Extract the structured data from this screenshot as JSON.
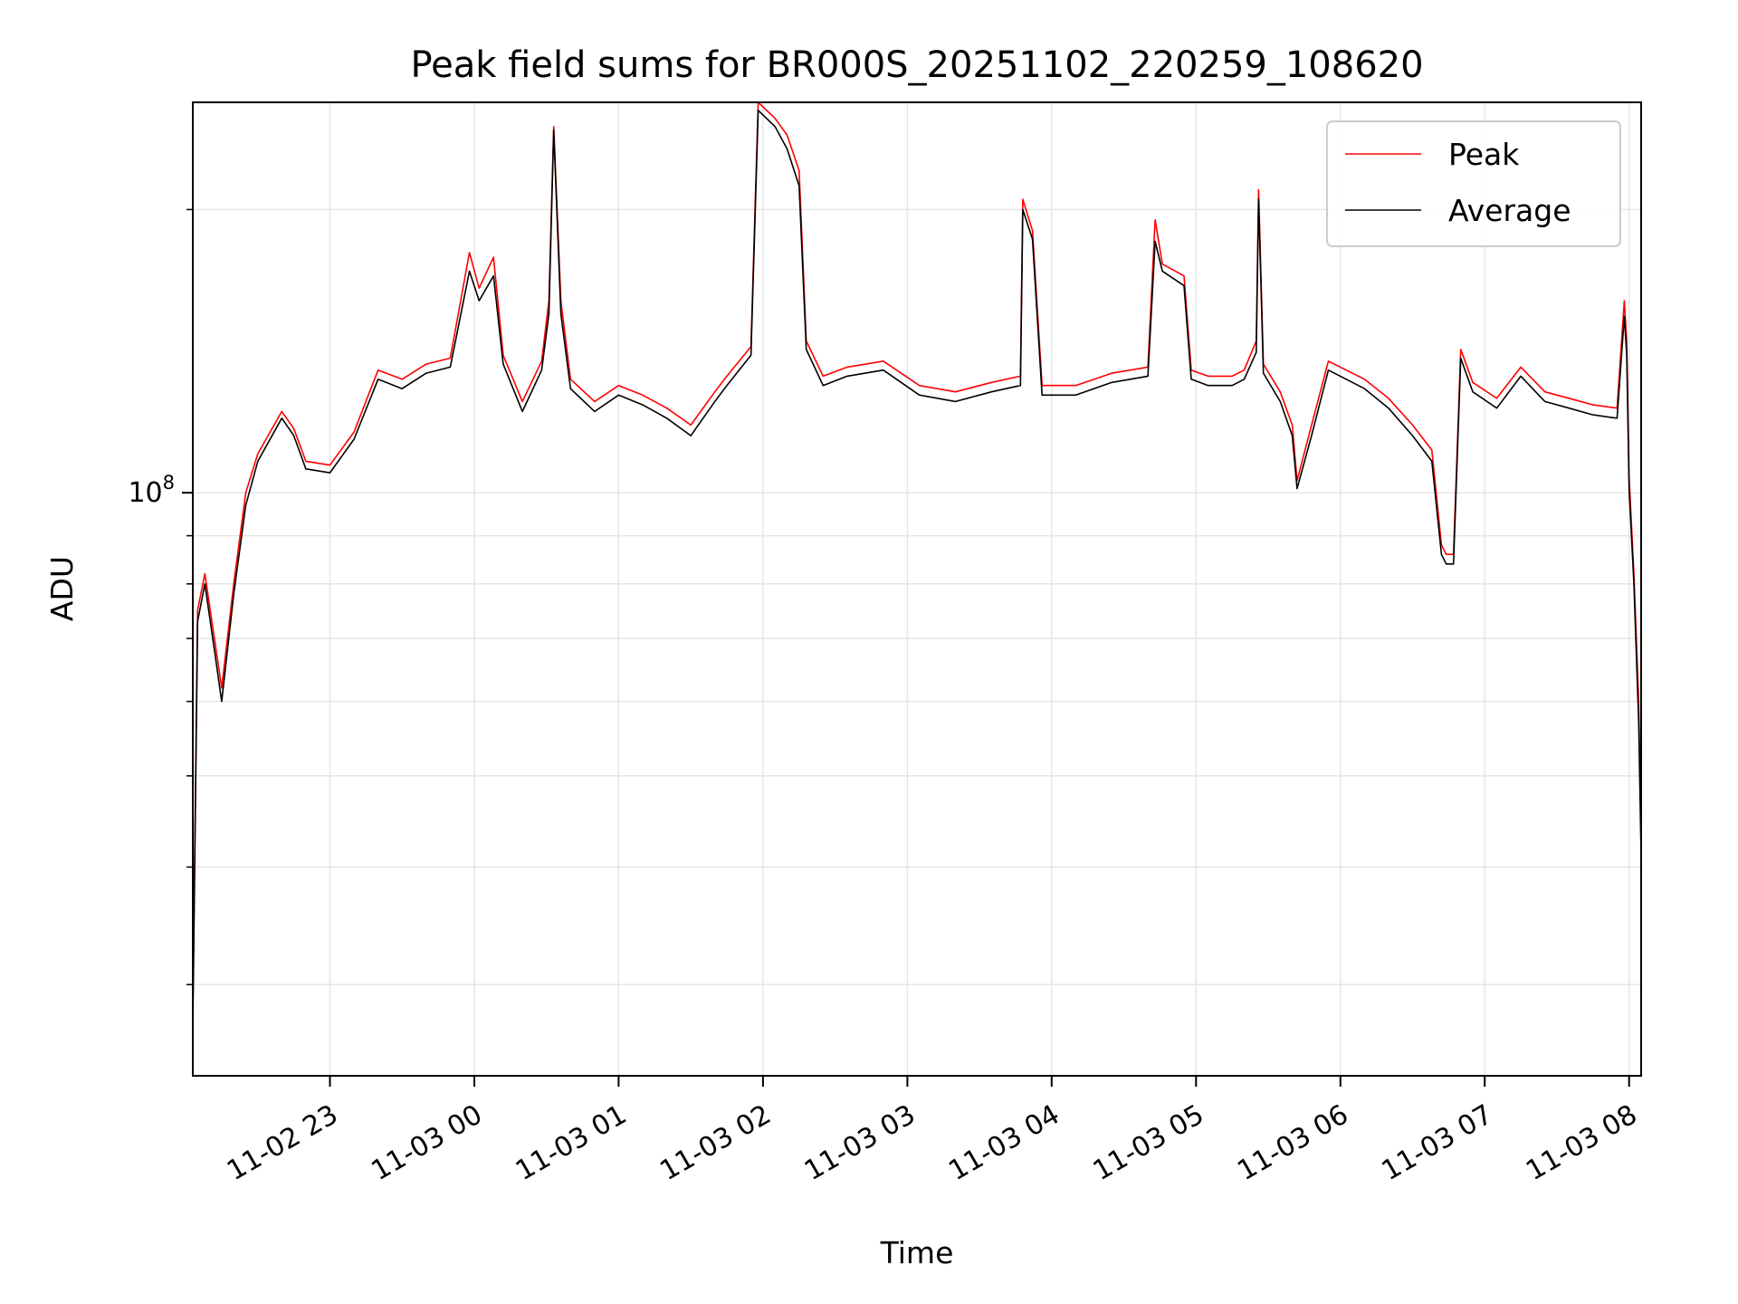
{
  "chart_data": {
    "type": "line",
    "title": "Peak field sums for BR000S_20251102_220259_108620",
    "xlabel": "Time",
    "ylabel": "ADU",
    "yscale": "log",
    "grid": true,
    "legend_position": "top-right",
    "xlim": [
      "2025-11-02 22:03",
      "2025-11-03 08:05"
    ],
    "ylim": [
      24000000,
      260000000
    ],
    "x_ticks": [
      "11-02 23",
      "11-03 00",
      "11-03 01",
      "11-03 02",
      "11-03 03",
      "11-03 04",
      "11-03 05",
      "11-03 06",
      "11-03 07",
      "11-03 08"
    ],
    "x_tick_values": [
      "2025-11-02 23:00",
      "2025-11-03 00:00",
      "2025-11-03 01:00",
      "2025-11-03 02:00",
      "2025-11-03 03:00",
      "2025-11-03 04:00",
      "2025-11-03 05:00",
      "2025-11-03 06:00",
      "2025-11-03 07:00",
      "2025-11-03 08:00"
    ],
    "y_ticks": [
      {
        "value": 100000000,
        "base": "10",
        "exp": "8"
      }
    ],
    "y_minor_ticks": [
      30000000,
      40000000,
      50000000,
      60000000,
      70000000,
      80000000,
      90000000,
      200000000
    ],
    "series": [
      {
        "name": "Peak",
        "color": "#ff0000",
        "x": [
          "2025-11-02 22:03",
          "2025-11-02 22:05",
          "2025-11-02 22:08",
          "2025-11-02 22:12",
          "2025-11-02 22:15",
          "2025-11-02 22:20",
          "2025-11-02 22:25",
          "2025-11-02 22:30",
          "2025-11-02 22:40",
          "2025-11-02 22:45",
          "2025-11-02 22:50",
          "2025-11-02 23:00",
          "2025-11-02 23:10",
          "2025-11-02 23:20",
          "2025-11-02 23:30",
          "2025-11-02 23:40",
          "2025-11-02 23:50",
          "2025-11-02 23:58",
          "2025-11-03 00:02",
          "2025-11-03 00:08",
          "2025-11-03 00:12",
          "2025-11-03 00:20",
          "2025-11-03 00:28",
          "2025-11-03 00:31",
          "2025-11-03 00:33",
          "2025-11-03 00:36",
          "2025-11-03 00:40",
          "2025-11-03 00:50",
          "2025-11-03 01:00",
          "2025-11-03 01:10",
          "2025-11-03 01:20",
          "2025-11-03 01:30",
          "2025-11-03 01:40",
          "2025-11-03 01:45",
          "2025-11-03 01:55",
          "2025-11-03 01:58",
          "2025-11-03 02:05",
          "2025-11-03 02:10",
          "2025-11-03 02:15",
          "2025-11-03 02:18",
          "2025-11-03 02:25",
          "2025-11-03 02:35",
          "2025-11-03 02:50",
          "2025-11-03 03:05",
          "2025-11-03 03:20",
          "2025-11-03 03:35",
          "2025-11-03 03:47",
          "2025-11-03 03:48",
          "2025-11-03 03:52",
          "2025-11-03 03:56",
          "2025-11-03 04:10",
          "2025-11-03 04:25",
          "2025-11-03 04:40",
          "2025-11-03 04:43",
          "2025-11-03 04:46",
          "2025-11-03 04:55",
          "2025-11-03 04:58",
          "2025-11-03 05:05",
          "2025-11-03 05:15",
          "2025-11-03 05:20",
          "2025-11-03 05:25",
          "2025-11-03 05:26",
          "2025-11-03 05:28",
          "2025-11-03 05:35",
          "2025-11-03 05:40",
          "2025-11-03 05:42",
          "2025-11-03 05:48",
          "2025-11-03 05:55",
          "2025-11-03 06:10",
          "2025-11-03 06:20",
          "2025-11-03 06:30",
          "2025-11-03 06:38",
          "2025-11-03 06:42",
          "2025-11-03 06:44",
          "2025-11-03 06:47",
          "2025-11-03 06:50",
          "2025-11-03 06:55",
          "2025-11-03 07:05",
          "2025-11-03 07:15",
          "2025-11-03 07:25",
          "2025-11-03 07:35",
          "2025-11-03 07:45",
          "2025-11-03 07:55",
          "2025-11-03 07:58",
          "2025-11-03 07:59",
          "2025-11-03 08:00",
          "2025-11-03 08:02",
          "2025-11-03 08:04",
          "2025-11-03 08:05"
        ],
        "values": [
          28000000,
          75000000,
          82000000,
          70000000,
          62000000,
          80000000,
          100000000,
          110000000,
          122000000,
          117000000,
          108000000,
          107000000,
          116000000,
          135000000,
          132000000,
          137000000,
          139000000,
          180000000,
          165000000,
          178000000,
          140000000,
          125000000,
          138000000,
          160000000,
          245000000,
          160000000,
          132000000,
          125000000,
          130000000,
          127000000,
          123000000,
          118000000,
          128000000,
          133000000,
          143000000,
          260000000,
          250000000,
          240000000,
          220000000,
          145000000,
          133000000,
          136000000,
          138000000,
          130000000,
          128000000,
          131000000,
          133000000,
          205000000,
          190000000,
          130000000,
          130000000,
          134000000,
          136000000,
          195000000,
          175000000,
          170000000,
          135000000,
          133000000,
          133000000,
          135000000,
          145000000,
          210000000,
          137000000,
          128000000,
          118000000,
          103000000,
          118000000,
          138000000,
          132000000,
          126000000,
          118000000,
          111000000,
          88000000,
          86000000,
          86000000,
          142000000,
          131000000,
          126000000,
          136000000,
          128000000,
          126000000,
          124000000,
          123000000,
          160000000,
          145000000,
          104000000,
          82000000,
          60000000,
          43000000
        ]
      },
      {
        "name": "Average",
        "color": "#000000",
        "x": [
          "2025-11-02 22:03",
          "2025-11-02 22:05",
          "2025-11-02 22:08",
          "2025-11-02 22:12",
          "2025-11-02 22:15",
          "2025-11-02 22:20",
          "2025-11-02 22:25",
          "2025-11-02 22:30",
          "2025-11-02 22:40",
          "2025-11-02 22:45",
          "2025-11-02 22:50",
          "2025-11-02 23:00",
          "2025-11-02 23:10",
          "2025-11-02 23:20",
          "2025-11-02 23:30",
          "2025-11-02 23:40",
          "2025-11-02 23:50",
          "2025-11-02 23:58",
          "2025-11-03 00:02",
          "2025-11-03 00:08",
          "2025-11-03 00:12",
          "2025-11-03 00:20",
          "2025-11-03 00:28",
          "2025-11-03 00:31",
          "2025-11-03 00:33",
          "2025-11-03 00:36",
          "2025-11-03 00:40",
          "2025-11-03 00:50",
          "2025-11-03 01:00",
          "2025-11-03 01:10",
          "2025-11-03 01:20",
          "2025-11-03 01:30",
          "2025-11-03 01:40",
          "2025-11-03 01:45",
          "2025-11-03 01:55",
          "2025-11-03 01:58",
          "2025-11-03 02:05",
          "2025-11-03 02:10",
          "2025-11-03 02:15",
          "2025-11-03 02:18",
          "2025-11-03 02:25",
          "2025-11-03 02:35",
          "2025-11-03 02:50",
          "2025-11-03 03:05",
          "2025-11-03 03:20",
          "2025-11-03 03:35",
          "2025-11-03 03:47",
          "2025-11-03 03:48",
          "2025-11-03 03:52",
          "2025-11-03 03:56",
          "2025-11-03 04:10",
          "2025-11-03 04:25",
          "2025-11-03 04:40",
          "2025-11-03 04:43",
          "2025-11-03 04:46",
          "2025-11-03 04:55",
          "2025-11-03 04:58",
          "2025-11-03 05:05",
          "2025-11-03 05:15",
          "2025-11-03 05:20",
          "2025-11-03 05:25",
          "2025-11-03 05:26",
          "2025-11-03 05:28",
          "2025-11-03 05:35",
          "2025-11-03 05:40",
          "2025-11-03 05:42",
          "2025-11-03 05:48",
          "2025-11-03 05:55",
          "2025-11-03 06:10",
          "2025-11-03 06:20",
          "2025-11-03 06:30",
          "2025-11-03 06:38",
          "2025-11-03 06:42",
          "2025-11-03 06:44",
          "2025-11-03 06:47",
          "2025-11-03 06:50",
          "2025-11-03 06:55",
          "2025-11-03 07:05",
          "2025-11-03 07:15",
          "2025-11-03 07:25",
          "2025-11-03 07:35",
          "2025-11-03 07:45",
          "2025-11-03 07:55",
          "2025-11-03 07:58",
          "2025-11-03 07:59",
          "2025-11-03 08:00",
          "2025-11-03 08:02",
          "2025-11-03 08:04",
          "2025-11-03 08:05"
        ],
        "values": [
          27000000,
          73000000,
          80000000,
          68000000,
          60000000,
          78000000,
          97000000,
          108000000,
          120000000,
          115000000,
          106000000,
          105000000,
          114000000,
          132000000,
          129000000,
          134000000,
          136000000,
          172000000,
          160000000,
          170000000,
          137000000,
          122000000,
          135000000,
          155000000,
          243000000,
          155000000,
          129000000,
          122000000,
          127000000,
          124000000,
          120000000,
          115000000,
          125000000,
          130000000,
          140000000,
          255000000,
          245000000,
          232000000,
          212000000,
          142000000,
          130000000,
          133000000,
          135000000,
          127000000,
          125000000,
          128000000,
          130000000,
          200000000,
          186000000,
          127000000,
          127000000,
          131000000,
          133000000,
          185000000,
          172000000,
          166000000,
          132000000,
          130000000,
          130000000,
          132000000,
          141000000,
          205000000,
          134000000,
          125000000,
          115000000,
          101000000,
          115000000,
          135000000,
          129000000,
          123000000,
          115000000,
          108000000,
          86000000,
          84000000,
          84000000,
          139000000,
          128000000,
          123000000,
          133000000,
          125000000,
          123000000,
          121000000,
          120000000,
          154000000,
          140000000,
          101000000,
          80000000,
          57000000,
          41000000
        ]
      }
    ]
  }
}
